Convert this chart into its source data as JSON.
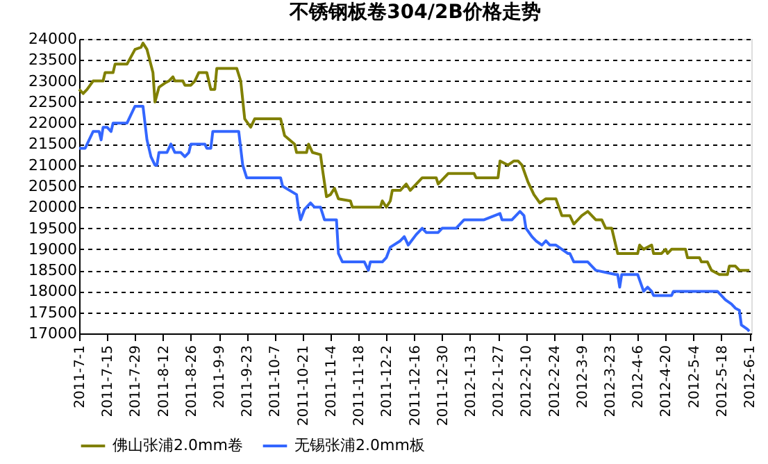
{
  "chart_data": {
    "type": "line",
    "title": "不锈钢板卷304/2B价格走势",
    "xlim": [
      "2011-07-01",
      "2012-06-02"
    ],
    "xticks": [
      {
        "value": "2011-07-01",
        "label": "2011-7-1"
      },
      {
        "value": "2011-07-15",
        "label": "2011-7-15"
      },
      {
        "value": "2011-07-29",
        "label": "2011-7-29"
      },
      {
        "value": "2011-08-12",
        "label": "2011-8-12"
      },
      {
        "value": "2011-08-26",
        "label": "2011-8-26"
      },
      {
        "value": "2011-09-09",
        "label": "2011-9-9"
      },
      {
        "value": "2011-09-23",
        "label": "2011-9-23"
      },
      {
        "value": "2011-10-07",
        "label": "2011-10-7"
      },
      {
        "value": "2011-10-21",
        "label": "2011-10-21"
      },
      {
        "value": "2011-11-04",
        "label": "2011-11-4"
      },
      {
        "value": "2011-11-18",
        "label": "2011-11-18"
      },
      {
        "value": "2011-12-02",
        "label": "2011-12-2"
      },
      {
        "value": "2011-12-16",
        "label": "2011-12-16"
      },
      {
        "value": "2011-12-30",
        "label": "2011-12-30"
      },
      {
        "value": "2012-01-13",
        "label": "2012-1-13"
      },
      {
        "value": "2012-01-27",
        "label": "2012-1-27"
      },
      {
        "value": "2012-02-10",
        "label": "2012-2-10"
      },
      {
        "value": "2012-02-24",
        "label": "2012-2-24"
      },
      {
        "value": "2012-03-09",
        "label": "2012-3-9"
      },
      {
        "value": "2012-03-23",
        "label": "2012-3-23"
      },
      {
        "value": "2012-04-06",
        "label": "2012-4-6"
      },
      {
        "value": "2012-04-20",
        "label": "2012-4-20"
      },
      {
        "value": "2012-05-04",
        "label": "2012-5-4"
      },
      {
        "value": "2012-05-18",
        "label": "2012-5-18"
      },
      {
        "value": "2012-06-01",
        "label": "2012-6-1"
      }
    ],
    "ylim": [
      17000,
      24000
    ],
    "yticks": [
      17000,
      17500,
      18000,
      18500,
      19000,
      19500,
      20000,
      20500,
      21000,
      21500,
      22000,
      22500,
      23000,
      23500,
      24000
    ],
    "grid": "y",
    "legend": "bottom",
    "marker": "none",
    "line_style": "solid",
    "series": [
      {
        "name": "佛山张浦2.0mm卷",
        "color": "#808000",
        "x": [
          "2011-07-01",
          "2011-07-03",
          "2011-07-05",
          "2011-07-08",
          "2011-07-13",
          "2011-07-14",
          "2011-07-18",
          "2011-07-19",
          "2011-07-25",
          "2011-07-29",
          "2011-08-01",
          "2011-08-02",
          "2011-08-04",
          "2011-08-07",
          "2011-08-08",
          "2011-08-10",
          "2011-08-13",
          "2011-08-15",
          "2011-08-17",
          "2011-08-18",
          "2011-08-22",
          "2011-08-23",
          "2011-08-26",
          "2011-08-28",
          "2011-08-30",
          "2011-09-03",
          "2011-09-05",
          "2011-09-07",
          "2011-09-08",
          "2011-09-18",
          "2011-09-20",
          "2011-09-22",
          "2011-09-25",
          "2011-09-27",
          "2011-10-10",
          "2011-10-12",
          "2011-10-17",
          "2011-10-18",
          "2011-10-23",
          "2011-10-24",
          "2011-10-26",
          "2011-10-30",
          "2011-10-31",
          "2011-11-02",
          "2011-11-04",
          "2011-11-06",
          "2011-11-08",
          "2011-11-14",
          "2011-11-15",
          "2011-11-29",
          "2011-11-30",
          "2011-12-02",
          "2011-12-04",
          "2011-12-05",
          "2011-12-09",
          "2011-12-12",
          "2011-12-14",
          "2011-12-20",
          "2011-12-27",
          "2011-12-28",
          "2012-01-02",
          "2012-01-15",
          "2012-01-16",
          "2012-01-27",
          "2012-01-28",
          "2012-02-01",
          "2012-02-04",
          "2012-02-06",
          "2012-02-08",
          "2012-02-11",
          "2012-02-14",
          "2012-02-17",
          "2012-02-20",
          "2012-02-25",
          "2012-02-28",
          "2012-03-03",
          "2012-03-05",
          "2012-03-09",
          "2012-03-12",
          "2012-03-16",
          "2012-03-19",
          "2012-03-21",
          "2012-03-24",
          "2012-03-27",
          "2012-04-06",
          "2012-04-07",
          "2012-04-09",
          "2012-04-13",
          "2012-04-14",
          "2012-04-18",
          "2012-04-20",
          "2012-04-21",
          "2012-04-23",
          "2012-04-30",
          "2012-05-01",
          "2012-05-07",
          "2012-05-08",
          "2012-05-11",
          "2012-05-13",
          "2012-05-17",
          "2012-05-21",
          "2012-05-22",
          "2012-05-25",
          "2012-05-27",
          "2012-06-01"
        ],
        "values": [
          22800,
          22700,
          22800,
          23000,
          23000,
          23200,
          23200,
          23400,
          23400,
          23750,
          23800,
          23900,
          23750,
          23200,
          22500,
          22850,
          22950,
          23000,
          23100,
          23000,
          23000,
          22900,
          22900,
          23000,
          23200,
          23200,
          22800,
          22800,
          23300,
          23300,
          23000,
          22100,
          21900,
          22100,
          22100,
          21700,
          21500,
          21300,
          21300,
          21500,
          21300,
          21250,
          20900,
          20250,
          20300,
          20450,
          20200,
          20150,
          20000,
          20000,
          20150,
          20000,
          20150,
          20400,
          20400,
          20550,
          20400,
          20700,
          20700,
          20550,
          20800,
          20800,
          20700,
          20700,
          21100,
          21000,
          21100,
          21100,
          21000,
          20600,
          20300,
          20100,
          20200,
          20200,
          19800,
          19800,
          19600,
          19800,
          19900,
          19700,
          19700,
          19500,
          19500,
          18900,
          18900,
          19100,
          19000,
          19100,
          18900,
          18900,
          19000,
          18900,
          19000,
          19000,
          18800,
          18800,
          18700,
          18700,
          18500,
          18400,
          18400,
          18600,
          18600,
          18500,
          18500
        ]
      },
      {
        "name": "无锡张浦2.0mm板",
        "color": "#3366ff",
        "x": [
          "2011-07-01",
          "2011-07-04",
          "2011-07-06",
          "2011-07-08",
          "2011-07-11",
          "2011-07-12",
          "2011-07-13",
          "2011-07-15",
          "2011-07-17",
          "2011-07-18",
          "2011-07-25",
          "2011-07-29",
          "2011-08-02",
          "2011-08-04",
          "2011-08-06",
          "2011-08-08",
          "2011-08-09",
          "2011-08-10",
          "2011-08-14",
          "2011-08-16",
          "2011-08-18",
          "2011-08-21",
          "2011-08-23",
          "2011-08-25",
          "2011-08-26",
          "2011-09-02",
          "2011-09-03",
          "2011-09-05",
          "2011-09-06",
          "2011-09-19",
          "2011-09-21",
          "2011-09-23",
          "2011-10-10",
          "2011-10-11",
          "2011-10-18",
          "2011-10-19",
          "2011-10-20",
          "2011-10-22",
          "2011-10-25",
          "2011-10-27",
          "2011-10-30",
          "2011-11-01",
          "2011-11-07",
          "2011-11-08",
          "2011-11-10",
          "2011-11-21",
          "2011-11-23",
          "2011-11-24",
          "2011-11-30",
          "2011-12-02",
          "2011-12-04",
          "2011-12-09",
          "2011-12-11",
          "2011-12-13",
          "2011-12-17",
          "2011-12-20",
          "2011-12-22",
          "2011-12-28",
          "2011-12-30",
          "2012-01-06",
          "2012-01-10",
          "2012-01-20",
          "2012-01-28",
          "2012-01-29",
          "2012-02-03",
          "2012-02-05",
          "2012-02-07",
          "2012-02-09",
          "2012-02-10",
          "2012-02-13",
          "2012-02-15",
          "2012-02-18",
          "2012-02-20",
          "2012-02-22",
          "2012-02-25",
          "2012-02-28",
          "2012-03-02",
          "2012-03-03",
          "2012-03-05",
          "2012-03-12",
          "2012-03-16",
          "2012-03-26",
          "2012-03-27",
          "2012-03-28",
          "2012-03-29",
          "2012-04-06",
          "2012-04-09",
          "2012-04-11",
          "2012-04-13",
          "2012-04-14",
          "2012-04-23",
          "2012-04-24",
          "2012-05-16",
          "2012-05-20",
          "2012-05-23",
          "2012-05-25",
          "2012-05-27",
          "2012-05-28",
          "2012-05-31",
          "2012-06-01"
        ],
        "values": [
          21400,
          21400,
          21600,
          21800,
          21800,
          21600,
          21900,
          21900,
          21800,
          22000,
          22000,
          22400,
          22400,
          21600,
          21200,
          21000,
          21000,
          21300,
          21300,
          21500,
          21300,
          21300,
          21200,
          21300,
          21500,
          21500,
          21400,
          21400,
          21800,
          21800,
          21000,
          20700,
          20700,
          20500,
          20300,
          19950,
          19700,
          19950,
          20100,
          20000,
          20000,
          19700,
          19700,
          18900,
          18700,
          18700,
          18500,
          18700,
          18700,
          18800,
          19050,
          19200,
          19300,
          19100,
          19350,
          19500,
          19400,
          19400,
          19500,
          19500,
          19700,
          19700,
          19850,
          19700,
          19700,
          19800,
          19900,
          19800,
          19500,
          19300,
          19200,
          19100,
          19200,
          19100,
          19100,
          19000,
          18900,
          18900,
          18700,
          18700,
          18500,
          18400,
          18400,
          18100,
          18400,
          18400,
          18000,
          18100,
          18000,
          17900,
          17900,
          18000,
          18000,
          17800,
          17700,
          17600,
          17550,
          17200,
          17100,
          17050
        ]
      }
    ]
  }
}
